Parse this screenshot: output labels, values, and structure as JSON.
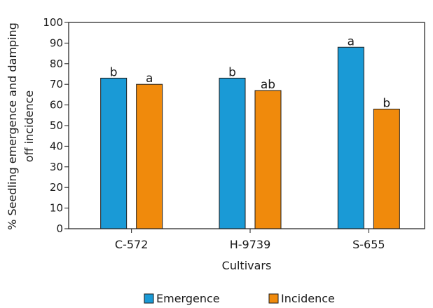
{
  "chart_data": {
    "type": "bar",
    "title": "",
    "xlabel": "Cultivars",
    "ylabel_lines": [
      "% Seedling emergence and damping",
      "off incidence"
    ],
    "ylim": [
      0,
      100
    ],
    "yticks": [
      0,
      10,
      20,
      30,
      40,
      50,
      60,
      70,
      80,
      90,
      100
    ],
    "grid": false,
    "legend_position": "bottom",
    "categories": [
      "C-572",
      "H-9739",
      "S-655"
    ],
    "series": [
      {
        "name": "Emergence",
        "color": "#1a9ad6",
        "values": [
          73,
          73,
          88
        ],
        "labels": [
          "b",
          "b",
          "a"
        ]
      },
      {
        "name": "Incidence",
        "color": "#f08a0c",
        "values": [
          70,
          67,
          58
        ],
        "labels": [
          "a",
          "ab",
          "b"
        ]
      }
    ]
  }
}
